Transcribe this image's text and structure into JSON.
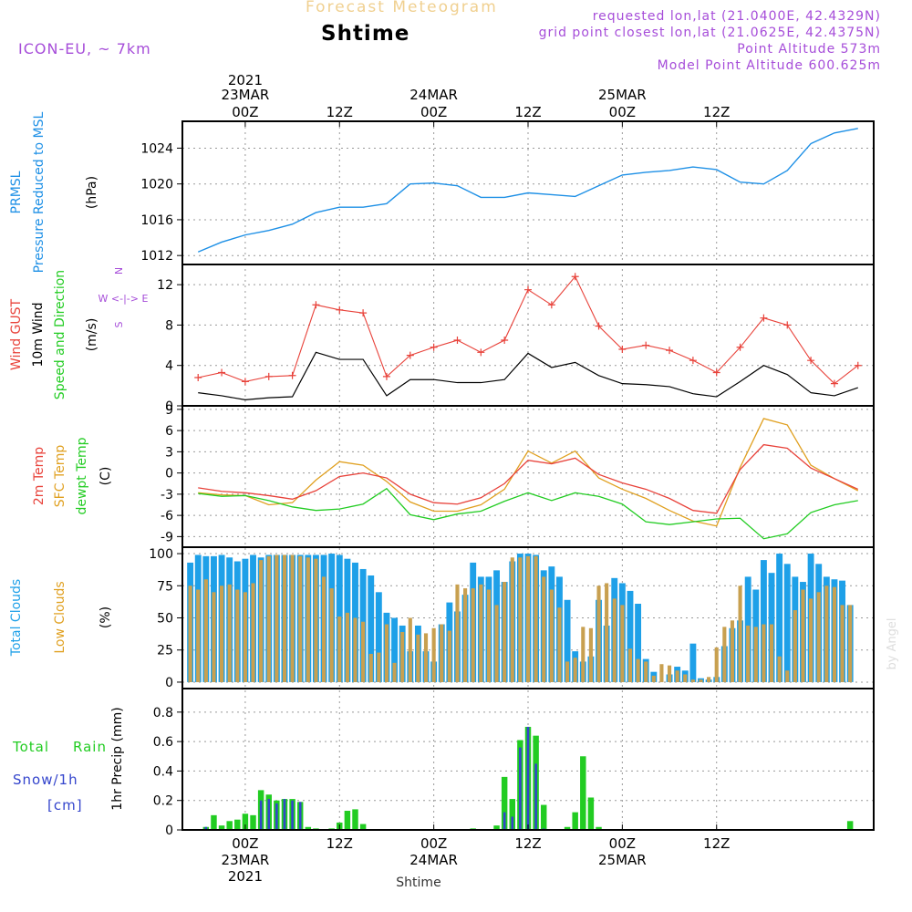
{
  "header": {
    "title_top": "Forecast Meteogram",
    "station": "Shtime",
    "model": "ICON-EU, ~ 7km",
    "requested": "requested lon,lat (21.0400E, 42.4329N)",
    "grid_point": "grid point closest lon,lat (21.0625E, 42.4375N)",
    "point_alt": "Point Altitude 573m",
    "model_alt": "Model Point Altitude 600.625m",
    "credit": "by Angel"
  },
  "colors": {
    "pressure": "#1e90e6",
    "temp2m": "#e8423a",
    "sfc": "#e0a020",
    "dewpt": "#22cc22",
    "gust": "#e8423a",
    "wind": "#000000",
    "total_cloud": "#1ea0e8",
    "low_cloud": "#c8a050",
    "rain": "#22cc22",
    "snow": "#3344cc",
    "header_purple": "#a64dd9"
  },
  "chart_data": [
    {
      "type": "line",
      "id": "pressure",
      "panel_labels": [
        "PRMSL",
        "Pressure Reduced to MSL",
        "(hPa)"
      ],
      "ylim": [
        1011,
        1027
      ],
      "yticks": [
        1012,
        1016,
        1020,
        1024
      ],
      "x_hours": [
        -6,
        -3,
        0,
        3,
        6,
        9,
        12,
        15,
        18,
        21,
        24,
        27,
        30,
        33,
        36,
        39,
        42,
        45,
        48,
        51,
        54,
        57,
        60,
        63,
        66,
        69,
        72,
        75,
        78
      ],
      "y": [
        1012.4,
        1013.5,
        1014.3,
        1014.8,
        1015.5,
        1016.8,
        1017.4,
        1017.4,
        1017.8,
        1020.0,
        1020.1,
        1019.8,
        1018.5,
        1018.5,
        1019.0,
        1018.8,
        1018.6,
        1019.8,
        1021.0,
        1021.3,
        1021.5,
        1021.9,
        1021.6,
        1020.2,
        1020.0,
        1021.5,
        1024.5,
        1025.7,
        1026.2
      ]
    },
    {
      "type": "line",
      "id": "wind",
      "panel_labels": [
        "Wind GUST",
        "10m Wind",
        "Speed and Direction",
        "(m/s)"
      ],
      "compass": [
        "N",
        "W <-|-> E",
        "S"
      ],
      "ylim": [
        0,
        14
      ],
      "yticks": [
        0,
        4,
        8,
        12
      ],
      "x_hours": [
        -6,
        -3,
        0,
        3,
        6,
        9,
        12,
        15,
        18,
        21,
        24,
        27,
        30,
        33,
        36,
        39,
        42,
        45,
        48,
        51,
        54,
        57,
        60,
        63,
        66,
        69,
        72,
        75,
        78
      ],
      "gust": [
        2.8,
        3.3,
        2.4,
        2.9,
        3.0,
        10.0,
        9.5,
        9.2,
        2.9,
        5.0,
        5.8,
        6.5,
        5.3,
        6.5,
        11.5,
        10.0,
        12.8,
        7.9,
        5.6,
        6.0,
        5.5,
        4.5,
        3.3,
        5.8,
        8.7,
        8.0,
        4.5,
        2.2,
        4.0
      ],
      "speed": [
        1.3,
        1.0,
        0.6,
        0.8,
        0.9,
        5.3,
        4.6,
        4.6,
        1.0,
        2.6,
        2.6,
        2.3,
        2.3,
        2.6,
        5.2,
        3.8,
        4.3,
        3.0,
        2.2,
        2.1,
        1.9,
        1.2,
        0.9,
        2.4,
        4.0,
        3.1,
        1.3,
        1.0,
        1.8
      ]
    },
    {
      "type": "line",
      "id": "temperature",
      "panel_labels": [
        "2m Temp",
        "SFC Temp",
        "dewpt Temp",
        "(C)"
      ],
      "ylim": [
        -10.5,
        9.5
      ],
      "yticks": [
        -9,
        -6,
        -3,
        0,
        3,
        6,
        9
      ],
      "x_hours": [
        -6,
        -3,
        0,
        3,
        6,
        9,
        12,
        15,
        18,
        21,
        24,
        27,
        30,
        33,
        36,
        39,
        42,
        45,
        48,
        51,
        54,
        57,
        60,
        63,
        66,
        69,
        72,
        75,
        78
      ],
      "temp_2m": [
        -2.1,
        -2.6,
        -2.8,
        -3.2,
        -3.7,
        -2.5,
        -0.5,
        0.0,
        -0.7,
        -3.0,
        -4.2,
        -4.4,
        -3.5,
        -1.5,
        1.8,
        1.3,
        2.1,
        -0.2,
        -1.4,
        -2.3,
        -3.6,
        -5.3,
        -5.7,
        0.5,
        4.0,
        3.5,
        0.7,
        -0.8,
        -2.3
      ],
      "temp_sfc": [
        -2.8,
        -3.1,
        -3.2,
        -4.5,
        -4.2,
        -1.0,
        1.6,
        1.1,
        -1.2,
        -4.1,
        -5.4,
        -5.4,
        -4.5,
        -2.3,
        3.1,
        1.4,
        3.1,
        -0.7,
        -2.3,
        -3.6,
        -5.3,
        -6.8,
        -7.5,
        0.8,
        7.7,
        6.8,
        1.1,
        -0.8,
        -2.5
      ],
      "dewpt": [
        -2.9,
        -3.3,
        -3.2,
        -3.9,
        -4.8,
        -5.3,
        -5.1,
        -4.4,
        -2.2,
        -5.9,
        -6.6,
        -5.8,
        -5.4,
        -4.0,
        -2.8,
        -3.9,
        -2.8,
        -3.3,
        -4.4,
        -6.9,
        -7.3,
        -6.9,
        -6.5,
        -6.4,
        -9.3,
        -8.6,
        -5.6,
        -4.5,
        -3.9
      ]
    },
    {
      "type": "bar",
      "id": "clouds",
      "panel_labels": [
        "Total Clouds",
        "Low Clouds",
        "(%)"
      ],
      "ylim": [
        -5,
        105
      ],
      "yticks": [
        0,
        25,
        50,
        75,
        100
      ],
      "x_hours": [
        -7,
        -6,
        -5,
        -4,
        -3,
        -2,
        -1,
        0,
        1,
        2,
        3,
        4,
        5,
        6,
        7,
        8,
        9,
        10,
        11,
        12,
        13,
        14,
        15,
        16,
        17,
        18,
        19,
        20,
        21,
        22,
        23,
        24,
        25,
        26,
        27,
        28,
        29,
        30,
        31,
        32,
        33,
        34,
        35,
        36,
        37,
        38,
        39,
        40,
        41,
        42,
        43,
        44,
        45,
        46,
        47,
        48,
        49,
        50,
        51,
        52,
        53,
        54,
        55,
        56,
        57,
        58,
        59,
        60,
        61,
        62,
        63,
        64,
        65,
        66,
        67,
        68,
        69,
        70,
        71,
        72,
        73,
        74,
        75,
        76,
        77,
        78
      ],
      "total": [
        93,
        99,
        98,
        98,
        99,
        97,
        94,
        96,
        99,
        97,
        99,
        99,
        99,
        99,
        99,
        99,
        99,
        99,
        100,
        99,
        96,
        93,
        88,
        83,
        70,
        54,
        50,
        44,
        24,
        44,
        24,
        16,
        45,
        62,
        55,
        68,
        93,
        82,
        82,
        87,
        78,
        94,
        100,
        100,
        99,
        87,
        90,
        82,
        64,
        24,
        16,
        20,
        64,
        44,
        81,
        77,
        71,
        61,
        18,
        8,
        0,
        6,
        12,
        9,
        30,
        3,
        2,
        4,
        28,
        42,
        48,
        82,
        72,
        95,
        85,
        100,
        92,
        82,
        78,
        100,
        92,
        82,
        80,
        79,
        60,
        0
      ],
      "low": [
        75,
        72,
        80,
        70,
        75,
        76,
        72,
        70,
        77,
        95,
        98,
        99,
        99,
        99,
        98,
        97,
        96,
        82,
        73,
        51,
        54,
        50,
        47,
        22,
        23,
        45,
        15,
        39,
        50,
        37,
        38,
        42,
        45,
        40,
        76,
        73,
        73,
        76,
        72,
        60,
        78,
        97,
        97,
        98,
        98,
        82,
        72,
        58,
        16,
        19,
        43,
        42,
        75,
        77,
        65,
        60,
        26,
        18,
        16,
        5,
        14,
        13,
        9,
        6,
        2,
        2,
        4,
        27,
        43,
        48,
        75,
        44,
        43,
        45,
        45,
        20,
        9,
        56,
        72,
        65,
        70,
        75,
        74,
        60,
        60,
        0
      ]
    },
    {
      "type": "bar",
      "id": "precip",
      "panel_labels": [
        "Total",
        "Rain",
        "Snow/1h",
        "[cm]",
        "1hr Precip (mm)"
      ],
      "ylim": [
        0,
        0.96
      ],
      "yticks": [
        0,
        0.2,
        0.4,
        0.6,
        0.8
      ],
      "x_hours": [
        -6,
        -5,
        -4,
        -3,
        -2,
        -1,
        0,
        1,
        2,
        3,
        4,
        5,
        6,
        7,
        8,
        9,
        10,
        11,
        12,
        13,
        14,
        15,
        16,
        17,
        18,
        19,
        20,
        21,
        22,
        23,
        24,
        25,
        26,
        27,
        28,
        29,
        30,
        31,
        32,
        33,
        34,
        35,
        36,
        37,
        38,
        39,
        40,
        41,
        42,
        43,
        44,
        45,
        46,
        47,
        48,
        49,
        50,
        51,
        52,
        53,
        54,
        55,
        56,
        57,
        58,
        59,
        60,
        61,
        62,
        63,
        64,
        65,
        66,
        67,
        68,
        69,
        70,
        71,
        72,
        73,
        74,
        75,
        76,
        77,
        78
      ],
      "rain": [
        0,
        0.02,
        0.1,
        0.03,
        0.06,
        0.07,
        0.11,
        0.1,
        0.27,
        0.24,
        0.2,
        0.21,
        0.21,
        0.19,
        0.02,
        0.01,
        0,
        0.01,
        0.05,
        0.13,
        0.14,
        0.04,
        0,
        0,
        0,
        0,
        0,
        0,
        0,
        0,
        0,
        0,
        0,
        0,
        0,
        0.01,
        0,
        0,
        0.03,
        0.36,
        0.21,
        0.61,
        0.7,
        0.64,
        0.17,
        0,
        0,
        0.02,
        0.12,
        0.5,
        0.22,
        0.02,
        0,
        0,
        0,
        0,
        0,
        0,
        0,
        0,
        0,
        0,
        0,
        0,
        0,
        0,
        0,
        0,
        0,
        0,
        0,
        0,
        0,
        0,
        0,
        0,
        0,
        0,
        0,
        0,
        0,
        0,
        0,
        0.06,
        0
      ],
      "snow": [
        0,
        0.02,
        0,
        0,
        0,
        0,
        0,
        0,
        0.2,
        0.21,
        0.18,
        0.21,
        0.2,
        0.19,
        0,
        0,
        0,
        0,
        0,
        0,
        0,
        0,
        0,
        0,
        0,
        0,
        0,
        0,
        0,
        0,
        0,
        0,
        0,
        0,
        0,
        0,
        0,
        0,
        0,
        0.12,
        0.09,
        0.56,
        0.7,
        0.45,
        0.01,
        0,
        0,
        0,
        0,
        0,
        0,
        0,
        0,
        0,
        0,
        0,
        0,
        0,
        0,
        0,
        0,
        0,
        0,
        0,
        0,
        0,
        0,
        0,
        0,
        0,
        0,
        0,
        0,
        0,
        0,
        0,
        0,
        0,
        0,
        0,
        0,
        0,
        0,
        0,
        0
      ]
    }
  ],
  "time_axis": {
    "top_year": "2021",
    "ticks": [
      {
        "h": 0,
        "t1": "23MAR",
        "t2": "00Z"
      },
      {
        "h": 12,
        "t1": "",
        "t2": "12Z"
      },
      {
        "h": 24,
        "t1": "24MAR",
        "t2": "00Z"
      },
      {
        "h": 36,
        "t1": "",
        "t2": "12Z"
      },
      {
        "h": 48,
        "t1": "25MAR",
        "t2": "00Z"
      },
      {
        "h": 60,
        "t1": "",
        "t2": "12Z"
      }
    ],
    "bottom_year": "2021",
    "bottom_label": "Shtime"
  }
}
